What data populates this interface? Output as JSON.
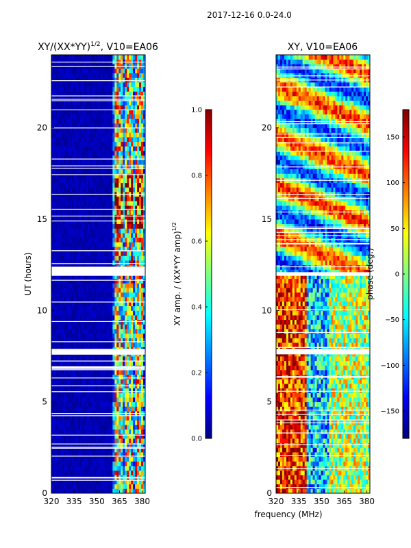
{
  "figure_title": "2017-12-16 0.0-24.0",
  "colors": {
    "jet": [
      "#000080",
      "#0000ff",
      "#0080ff",
      "#00ffff",
      "#80ff80",
      "#ffff00",
      "#ff8000",
      "#ff0000",
      "#800000"
    ]
  },
  "chart_data": [
    {
      "type": "heatmap",
      "title_main": "XY/(XX*YY)",
      "title_sup": "1/2",
      "title_rest": ", V10=EA06",
      "xlabel": "",
      "ylabel": "UT (hours)",
      "xlim": [
        320,
        382
      ],
      "ylim": [
        0,
        24
      ],
      "xticks": [
        "320",
        "335",
        "350",
        "365",
        "380"
      ],
      "xtick_values": [
        320,
        335,
        350,
        365,
        380
      ],
      "yticks": [
        "0",
        "5",
        "10",
        "15",
        "20"
      ],
      "ytick_values": [
        0,
        5,
        10,
        15,
        20
      ],
      "colorbar": {
        "label_main": "XY amp. / (XX*YY amp)",
        "label_sup": "1/2",
        "range": [
          0,
          1
        ],
        "ticks": [
          "0.0",
          "0.2",
          "0.4",
          "0.6",
          "0.8",
          "1.0"
        ],
        "tick_values": [
          0,
          0.2,
          0.4,
          0.6,
          0.8,
          1.0
        ]
      },
      "active_freq_range_mhz": [
        360,
        382
      ],
      "active_band_value_range": [
        0.2,
        0.95
      ],
      "background_value": 0.02,
      "gaps_ut_hours": [
        [
          11.9,
          12.4
        ],
        [
          7.6,
          7.9
        ],
        [
          6.8,
          6.95
        ]
      ]
    },
    {
      "type": "heatmap",
      "title_main": "XY, V10=EA06",
      "title_sup": "",
      "title_rest": "",
      "xlabel": "frequency (MHz)",
      "ylabel": "",
      "xlim": [
        320,
        382
      ],
      "ylim": [
        0,
        24
      ],
      "xticks": [
        "320",
        "335",
        "350",
        "365",
        "380"
      ],
      "xtick_values": [
        320,
        335,
        350,
        365,
        380
      ],
      "yticks": [
        "0",
        "5",
        "10",
        "15",
        "20"
      ],
      "ytick_values": [
        0,
        5,
        10,
        15,
        20
      ],
      "colorbar": {
        "label_main": "phase (deg.)",
        "label_sup": "",
        "range": [
          -180,
          180
        ],
        "ticks": [
          "−150",
          "−100",
          "−50",
          "0",
          "50",
          "100",
          "150"
        ],
        "tick_values": [
          -150,
          -100,
          -50,
          0,
          50,
          100,
          150
        ]
      },
      "gaps_ut_hours": [
        [
          11.9,
          12.1
        ],
        [
          7.6,
          7.9
        ]
      ]
    }
  ]
}
